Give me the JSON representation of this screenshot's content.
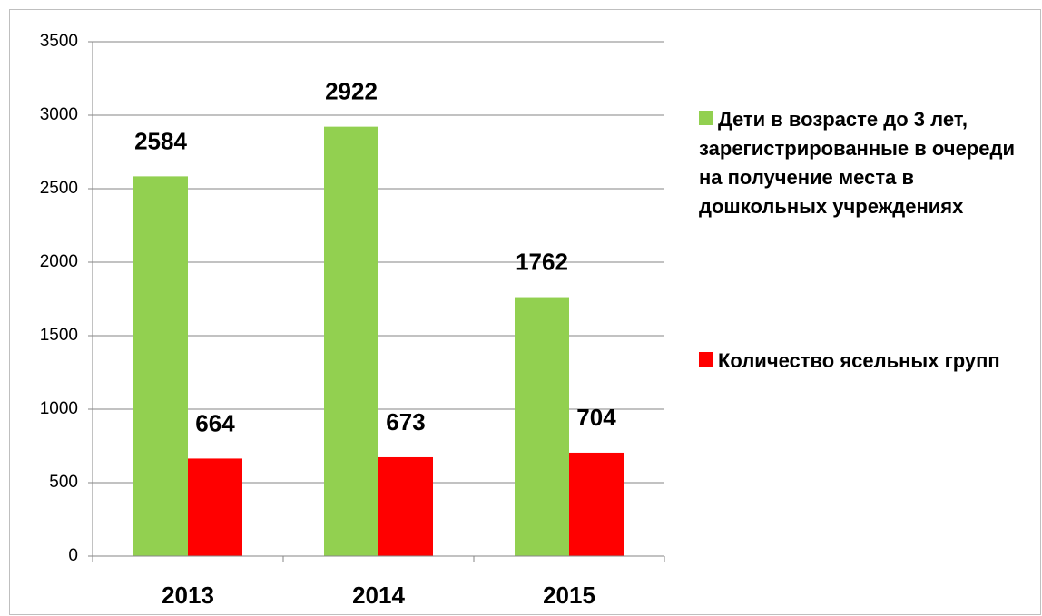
{
  "chart_data": {
    "type": "bar",
    "categories": [
      "2013",
      "2014",
      "2015"
    ],
    "series": [
      {
        "name": "Дети в возрасте до 3 лет, зарегистрированные в очереди на получение места в дошкольных учреждениях",
        "color": "#92d050",
        "values": [
          2584,
          2922,
          1762
        ]
      },
      {
        "name": "Количество ясельных групп",
        "color": "#ff0000",
        "values": [
          664,
          673,
          704
        ]
      }
    ],
    "ylim": [
      0,
      3500
    ],
    "yticks": [
      0,
      500,
      1000,
      1500,
      2000,
      2500,
      3000,
      3500
    ],
    "grid": true,
    "legend": "right"
  }
}
